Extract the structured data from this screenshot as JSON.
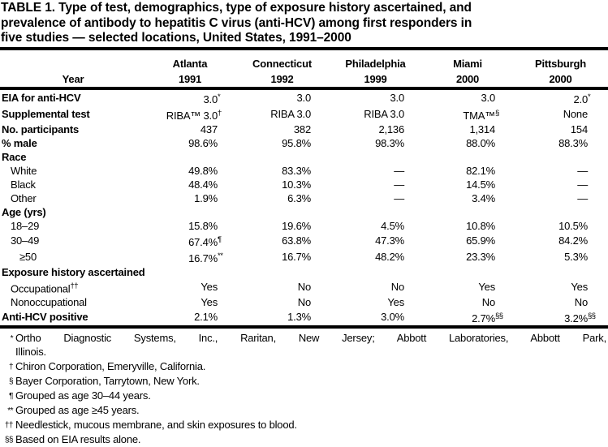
{
  "title_lines": [
    "TABLE 1. Type of test, demographics, type of exposure history ascertained, and",
    "prevalence of antibody to hepatitis C virus (anti-HCV) among first responders in",
    "five studies — selected locations, United States, 1991–2000"
  ],
  "header": {
    "year_label": "Year",
    "columns": [
      {
        "city": "Atlanta",
        "year": "1991"
      },
      {
        "city": "Connecticut",
        "year": "1992"
      },
      {
        "city": "Philadelphia",
        "year": "1999"
      },
      {
        "city": "Miami",
        "year": "2000"
      },
      {
        "city": "Pittsburgh",
        "year": "2000"
      }
    ]
  },
  "rows": [
    {
      "label": "EIA for anti-HCV",
      "style": "bold",
      "cells": [
        {
          "v": "3.0",
          "s": "*"
        },
        {
          "v": "3.0"
        },
        {
          "v": "3.0"
        },
        {
          "v": "3.0"
        },
        {
          "v": "2.0",
          "s": "*"
        }
      ]
    },
    {
      "label": "Supplemental test",
      "style": "bold",
      "cells": [
        {
          "v": "RIBA™ 3.0",
          "s": "†"
        },
        {
          "v": "RIBA 3.0"
        },
        {
          "v": "RIBA 3.0"
        },
        {
          "v": "TMA™",
          "s": "§"
        },
        {
          "v": "None"
        }
      ]
    },
    {
      "label": "No. participants",
      "style": "bold",
      "cells": [
        {
          "v": "437"
        },
        {
          "v": "382"
        },
        {
          "v": "2,136"
        },
        {
          "v": "1,314"
        },
        {
          "v": "154"
        }
      ]
    },
    {
      "label": "% male",
      "style": "bold",
      "cells": [
        {
          "v": "98.6%"
        },
        {
          "v": "95.8%"
        },
        {
          "v": "98.3%"
        },
        {
          "v": "88.0%"
        },
        {
          "v": "88.3%"
        }
      ]
    },
    {
      "label": "Race",
      "style": "section",
      "cells": []
    },
    {
      "label": "White",
      "style": "sub",
      "cells": [
        {
          "v": "49.8%"
        },
        {
          "v": "83.3%"
        },
        {
          "v": "—"
        },
        {
          "v": "82.1%"
        },
        {
          "v": "—"
        }
      ]
    },
    {
      "label": "Black",
      "style": "sub",
      "cells": [
        {
          "v": "48.4%"
        },
        {
          "v": "10.3%"
        },
        {
          "v": "—"
        },
        {
          "v": "14.5%"
        },
        {
          "v": "—"
        }
      ]
    },
    {
      "label": "Other",
      "style": "sub",
      "cells": [
        {
          "v": "1.9%"
        },
        {
          "v": "6.3%"
        },
        {
          "v": "—"
        },
        {
          "v": "3.4%"
        },
        {
          "v": "—"
        }
      ]
    },
    {
      "label": "Age (yrs)",
      "style": "section",
      "cells": []
    },
    {
      "label": "18–29",
      "style": "sub",
      "cells": [
        {
          "v": "15.8%"
        },
        {
          "v": "19.6%"
        },
        {
          "v": "4.5%"
        },
        {
          "v": "10.8%"
        },
        {
          "v": "10.5%"
        }
      ]
    },
    {
      "label": "30–49",
      "style": "sub",
      "cells": [
        {
          "v": "67.4%",
          "s": "¶"
        },
        {
          "v": "63.8%"
        },
        {
          "v": "47.3%"
        },
        {
          "v": "65.9%"
        },
        {
          "v": "84.2%"
        }
      ]
    },
    {
      "label": "≥50",
      "style": "sub2",
      "cells": [
        {
          "v": "16.7%",
          "s": "**"
        },
        {
          "v": "16.7%"
        },
        {
          "v": "48.2%"
        },
        {
          "v": "23.3%"
        },
        {
          "v": "5.3%"
        }
      ]
    },
    {
      "label": "Exposure history ascertained",
      "style": "section",
      "cells": []
    },
    {
      "label": "Occupational",
      "label_sup": "††",
      "style": "sub",
      "cells": [
        {
          "v": "Yes"
        },
        {
          "v": "No"
        },
        {
          "v": "No"
        },
        {
          "v": "Yes"
        },
        {
          "v": "Yes"
        }
      ]
    },
    {
      "label": "Nonoccupational",
      "style": "sub",
      "cells": [
        {
          "v": "Yes"
        },
        {
          "v": "No"
        },
        {
          "v": "Yes"
        },
        {
          "v": "No"
        },
        {
          "v": "No"
        }
      ]
    },
    {
      "label": "Anti-HCV positive",
      "style": "bold",
      "last": true,
      "cells": [
        {
          "v": "2.1%"
        },
        {
          "v": "1.3%"
        },
        {
          "v": "3.0%"
        },
        {
          "v": "2.7%",
          "s": "§§"
        },
        {
          "v": "3.2%",
          "s": "§§"
        }
      ]
    }
  ],
  "footnotes": [
    {
      "marker": "*",
      "lines": [
        "Ortho Diagnostic Systems, Inc., Raritan, New Jersey; Abbott Laboratories, Abbott Park,",
        "Illinois."
      ],
      "justify_first": true
    },
    {
      "marker": "†",
      "lines": [
        "Chiron Corporation, Emeryville, California."
      ]
    },
    {
      "marker": "§",
      "lines": [
        "Bayer Corporation, Tarrytown, New York."
      ]
    },
    {
      "marker": "¶",
      "lines": [
        "Grouped as age 30–44 years."
      ]
    },
    {
      "marker": "**",
      "lines": [
        "Grouped as age ≥45 years."
      ]
    },
    {
      "marker": "††",
      "lines": [
        "Needlestick, mucous membrane, and skin exposures to blood."
      ]
    },
    {
      "marker": "§§",
      "lines": [
        "Based on EIA results alone."
      ]
    }
  ]
}
